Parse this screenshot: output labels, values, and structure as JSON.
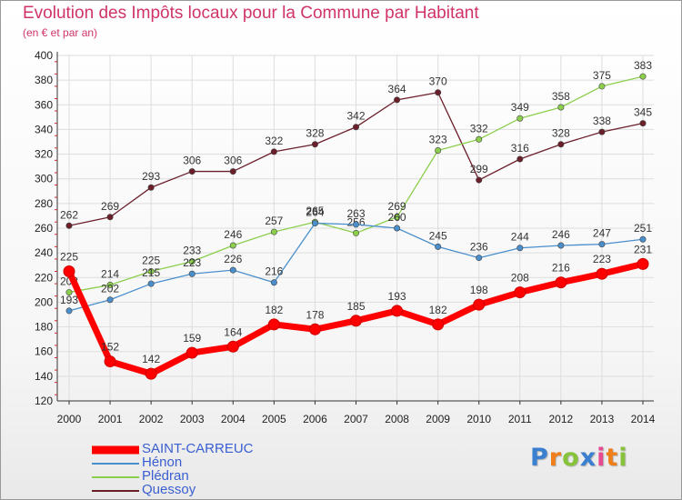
{
  "chart_data": {
    "type": "line",
    "title": "Evolution des Impôts locaux pour la Commune par Habitant",
    "subtitle": "(en € et par an)",
    "xlabel": "",
    "ylabel": "",
    "x": [
      "2000",
      "2001",
      "2002",
      "2003",
      "2004",
      "2005",
      "2006",
      "2007",
      "2008",
      "2009",
      "2010",
      "2011",
      "2012",
      "2013",
      "2014"
    ],
    "yticks": [
      "120",
      "140",
      "160",
      "180",
      "200",
      "220",
      "240",
      "260",
      "280",
      "300",
      "320",
      "340",
      "360",
      "380",
      "400"
    ],
    "ylim": [
      120,
      400
    ],
    "grid": true,
    "legend_position": "bottom-left",
    "series": [
      {
        "name": "Quessoy",
        "color": "#6b1f2a",
        "values": [
          262,
          269,
          293,
          306,
          306,
          322,
          328,
          342,
          364,
          370,
          299,
          316,
          328,
          338,
          345
        ]
      },
      {
        "name": "Plédran",
        "color": "#8ccf4d",
        "values": [
          208,
          214,
          225,
          233,
          246,
          257,
          265,
          256,
          269,
          323,
          332,
          349,
          358,
          375,
          383
        ]
      },
      {
        "name": "Hénon",
        "color": "#4a8fcc",
        "values": [
          193,
          202,
          215,
          223,
          226,
          216,
          264,
          263,
          260,
          245,
          236,
          244,
          246,
          247,
          251
        ]
      },
      {
        "name": "SAINT-CARREUC",
        "color": "#ff0000",
        "values": [
          225,
          152,
          142,
          159,
          164,
          182,
          178,
          185,
          193,
          182,
          198,
          208,
          216,
          223,
          231
        ]
      }
    ]
  },
  "legend": [
    {
      "label": "SAINT-CARREUC",
      "color": "#ff0000"
    },
    {
      "label": "Hénon",
      "color": "#4a8fcc"
    },
    {
      "label": "Plédran",
      "color": "#8ccf4d"
    },
    {
      "label": "Quessoy",
      "color": "#6b1f2a"
    }
  ],
  "logo": {
    "letters": [
      "P",
      "r",
      "o",
      "x",
      "i",
      "t",
      "i"
    ],
    "colors": [
      "#3a7fd0",
      "#ee7f1a",
      "#86c23a",
      "#3a7fd0",
      "#e84a92",
      "#ee7f1a",
      "#86c23a"
    ]
  }
}
